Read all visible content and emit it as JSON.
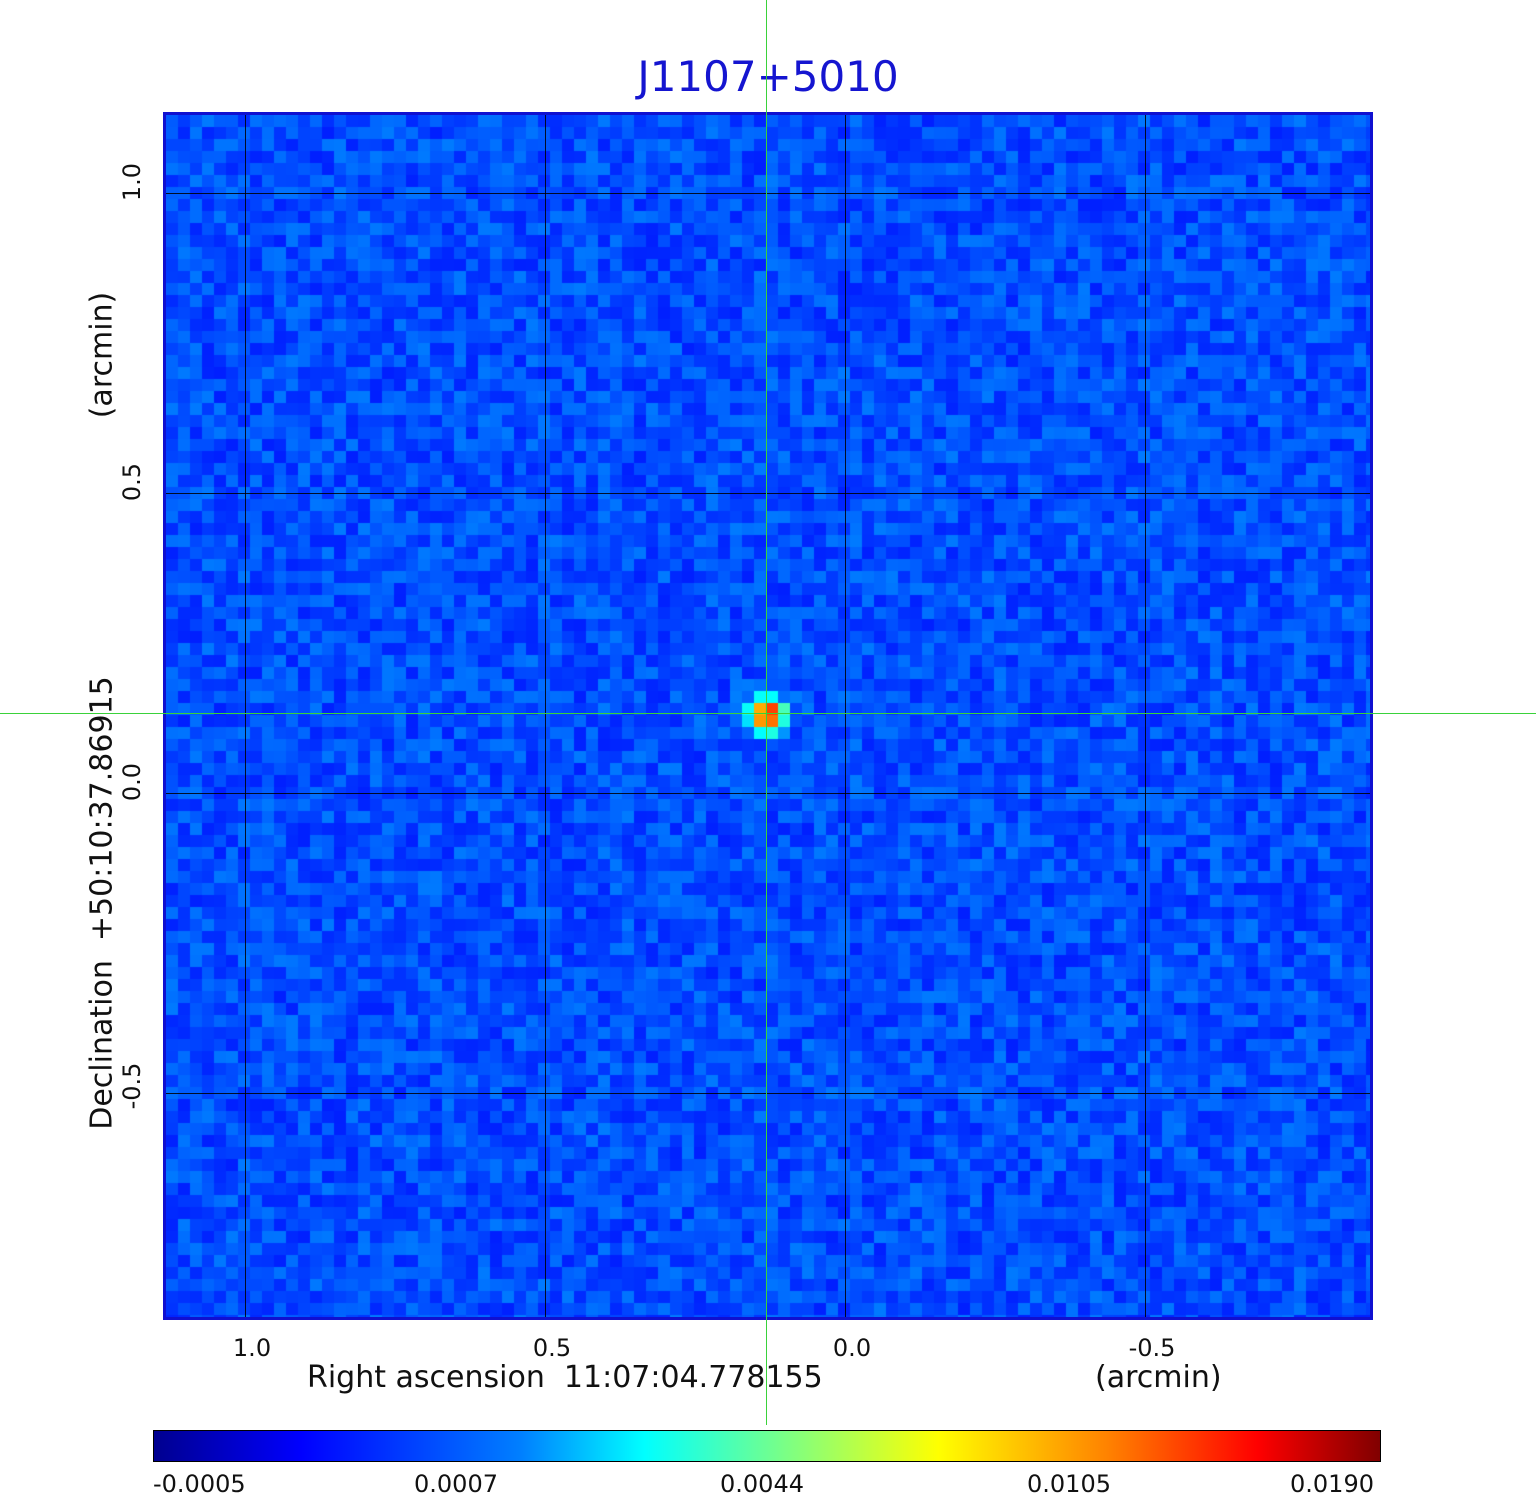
{
  "title": "J1107+5010",
  "x_axis": {
    "label": "Right ascension  11:07:04.778155",
    "unit": "(arcmin)",
    "ticks": [
      "1.0",
      "0.5",
      "0.0",
      "-0.5"
    ],
    "tick_values": [
      1.0,
      0.5,
      0.0,
      -0.5
    ]
  },
  "y_axis": {
    "label": "Declination  +50:10:37.86915",
    "unit": "(arcmin)",
    "ticks": [
      "1.0",
      "0.5",
      "0.0",
      "-0.5"
    ],
    "tick_values": [
      1.0,
      0.5,
      0.0,
      -0.5
    ]
  },
  "colorbar": {
    "colormap": "jet",
    "ticks": [
      "-0.0005",
      "0.0007",
      "0.0044",
      "0.0105",
      "0.0190"
    ]
  },
  "source": {
    "ra_offset_arcmin": 0.13,
    "dec_offset_arcmin": 0.13
  },
  "colors": {
    "frame": "#1010d0",
    "title": "#1515d0",
    "crosshair": "#3ad23a",
    "background_map": "#1f5cf0"
  }
}
